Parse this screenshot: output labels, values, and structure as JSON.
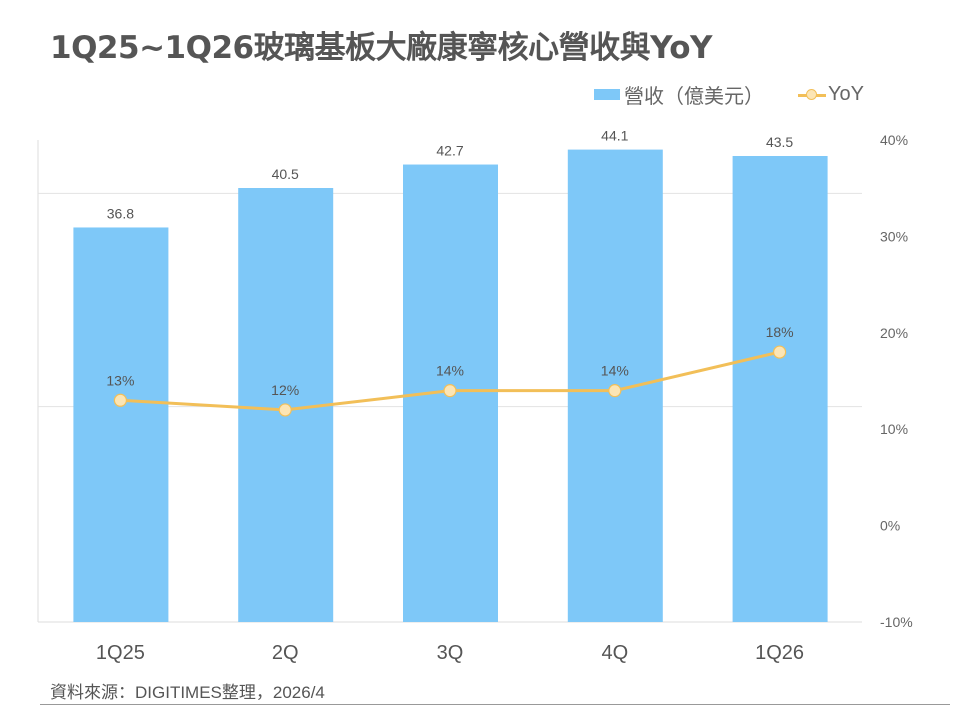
{
  "chart_data": {
    "type": "bar",
    "title": "1Q25~1Q26玻璃基板大廠康寧核心營收與YoY",
    "categories": [
      "1Q25",
      "2Q",
      "3Q",
      "4Q",
      "1Q26"
    ],
    "series": [
      {
        "name": "營收（億美元）",
        "type": "bar",
        "axis": "left",
        "values": [
          36.8,
          40.5,
          42.7,
          44.1,
          43.5
        ],
        "labels": [
          "36.8",
          "40.5",
          "42.7",
          "44.1",
          "43.5"
        ],
        "color": "#7ec8f8"
      },
      {
        "name": "YoY",
        "type": "line",
        "axis": "right",
        "values": [
          13,
          12,
          14,
          14,
          18
        ],
        "labels": [
          "13%",
          "12%",
          "14%",
          "14%",
          "18%"
        ],
        "color": "#f2bf58"
      }
    ],
    "left_axis": {
      "range": [
        0,
        45
      ],
      "gridlines": [
        20,
        40
      ]
    },
    "right_axis": {
      "range": [
        -10,
        40
      ],
      "ticks": [
        "40%",
        "30%",
        "20%",
        "10%",
        "0%",
        "-10%"
      ],
      "tick_values": [
        40,
        30,
        20,
        10,
        0,
        -10
      ]
    },
    "legend": "top-right",
    "source": "資料來源：DIGITIMES整理，2026/4"
  }
}
